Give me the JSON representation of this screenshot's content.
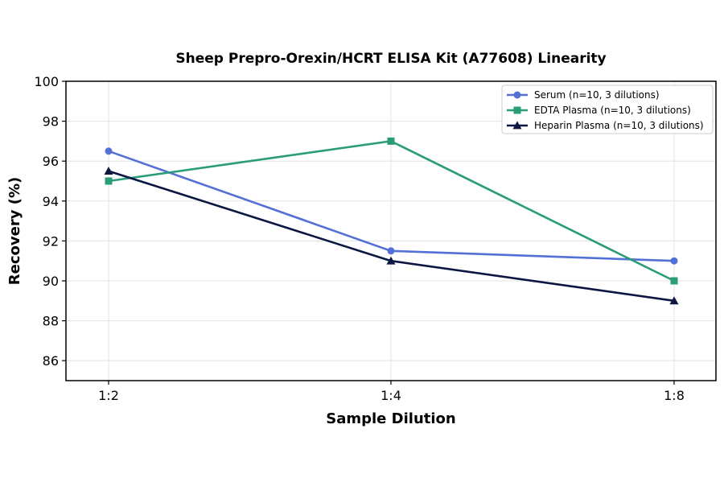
{
  "chart_data": {
    "type": "line",
    "title": "Sheep Prepro-Orexin/HCRT ELISA Kit (A77608) Linearity",
    "xlabel": "Sample Dilution",
    "ylabel": "Recovery (%)",
    "categories": [
      "1:2",
      "1:4",
      "1:8"
    ],
    "ylim": [
      85,
      100
    ],
    "yticks": [
      86,
      88,
      90,
      92,
      94,
      96,
      98,
      100
    ],
    "grid": true,
    "legend_position": "top-right",
    "series": [
      {
        "name": "Serum (n=10, 3 dilutions)",
        "values": [
          96.5,
          91.5,
          91.0
        ],
        "color": "#5470d6",
        "marker": "circle"
      },
      {
        "name": "EDTA Plasma (n=10, 3 dilutions)",
        "values": [
          95.0,
          97.0,
          90.0
        ],
        "color": "#2a9d78",
        "marker": "square"
      },
      {
        "name": "Heparin Plasma (n=10, 3 dilutions)",
        "values": [
          95.5,
          91.0,
          89.0
        ],
        "color": "#0b1742",
        "marker": "triangle"
      }
    ]
  }
}
